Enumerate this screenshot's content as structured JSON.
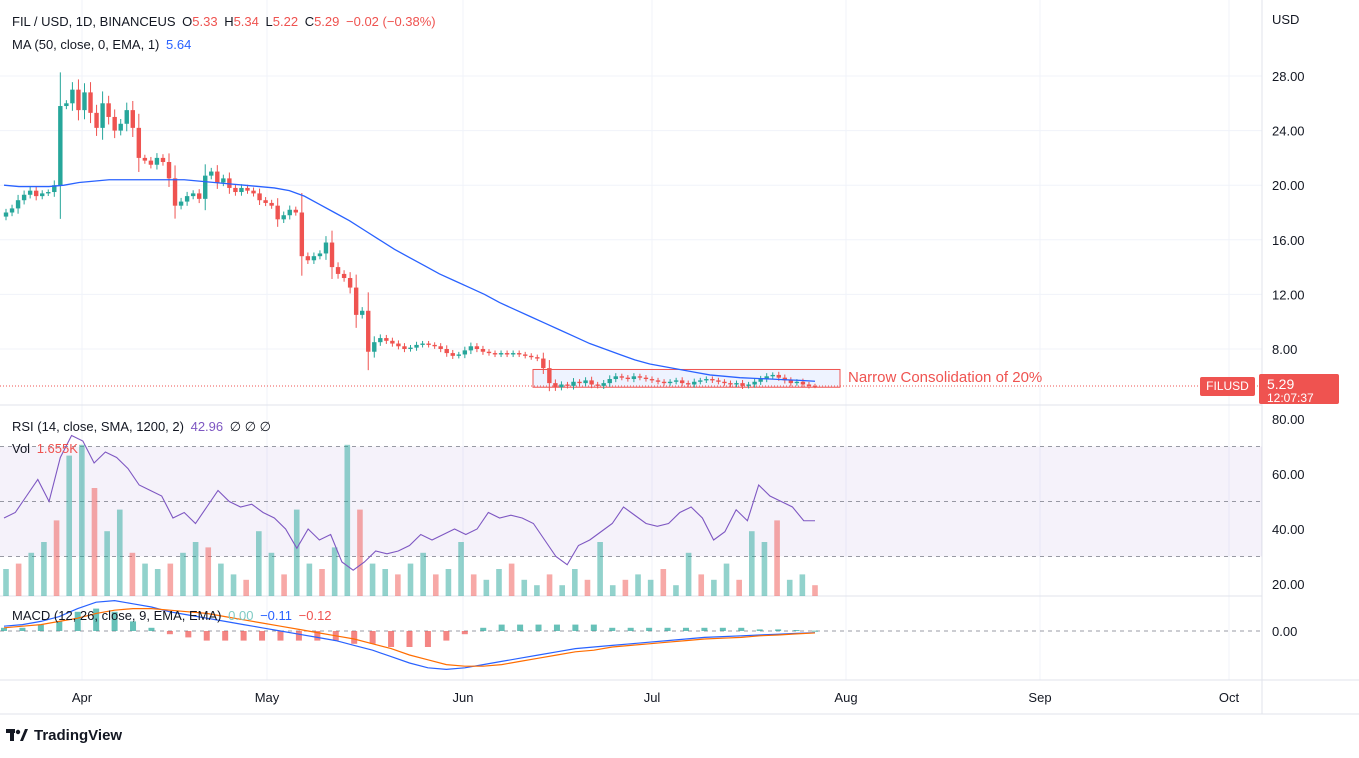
{
  "header": {
    "symbol": "FIL / USD, 1D, BINANCEUS",
    "open_label": "O",
    "open": "5.33",
    "high_label": "H",
    "high": "5.34",
    "low_label": "L",
    "low": "5.22",
    "close_label": "C",
    "close": "5.29",
    "change": "−0.02 (−0.38%)"
  },
  "ma": {
    "label": "MA (50, close, 0, EMA, 1)",
    "value": "5.64"
  },
  "rsi": {
    "label": "RSI (14, close, SMA, 1200, 2)",
    "value": "42.96",
    "extra": "∅ ∅ ∅"
  },
  "vol": {
    "label": "Vol",
    "value": "1.655K"
  },
  "macd": {
    "label": "MACD (12, 26, close, 9, EMA, EMA)",
    "hist": "0.00",
    "macd": "−0.11",
    "signal": "−0.12"
  },
  "price_tag": {
    "symbol": "FILUSD",
    "price": "5.29",
    "countdown": "12:07:37"
  },
  "annotation": "Narrow Consolidation of 20%",
  "brand": "TradingView",
  "currency": "USD",
  "colors": {
    "up": "#26a69a",
    "down": "#ef5350",
    "ma": "#2962ff",
    "rsi": "#7e57c2",
    "signal": "#ff6d00"
  },
  "chart_data": {
    "type": "candlestick",
    "x_ticks": [
      "Apr",
      "May",
      "Jun",
      "Jul",
      "Aug",
      "Sep",
      "Oct"
    ],
    "y_ticks": [
      "28.00",
      "24.00",
      "20.00",
      "16.00",
      "12.00",
      "8.00"
    ],
    "rsi_ticks": [
      "80.00",
      "60.00",
      "40.00",
      "20.00"
    ],
    "macd_ticks": [
      "0.00"
    ],
    "ylim": [
      4,
      31
    ],
    "closes": [
      18.0,
      18.3,
      18.9,
      19.3,
      19.6,
      19.2,
      19.4,
      19.5,
      20.0,
      25.8,
      26.0,
      27.0,
      25.5,
      26.8,
      25.3,
      24.2,
      26.0,
      25.0,
      24.0,
      24.5,
      25.5,
      24.2,
      22.0,
      21.8,
      21.5,
      22.0,
      21.7,
      20.5,
      18.5,
      18.8,
      19.2,
      19.4,
      19.0,
      20.7,
      21.0,
      20.2,
      20.5,
      19.8,
      19.5,
      19.8,
      19.6,
      19.4,
      18.9,
      18.7,
      18.5,
      17.5,
      17.8,
      18.2,
      18.0,
      14.8,
      14.5,
      14.8,
      15.0,
      15.8,
      14.0,
      13.5,
      13.2,
      12.5,
      10.5,
      10.8,
      7.8,
      8.5,
      8.8,
      8.6,
      8.4,
      8.2,
      8.0,
      8.1,
      8.3,
      8.4,
      8.3,
      8.2,
      8.0,
      7.7,
      7.5,
      7.6,
      7.9,
      8.2,
      8.0,
      7.8,
      7.7,
      7.6,
      7.7,
      7.6,
      7.7,
      7.6,
      7.5,
      7.4,
      7.3,
      6.6,
      5.5,
      5.2,
      5.4,
      5.3,
      5.6,
      5.5,
      5.7,
      5.4,
      5.3,
      5.5,
      5.8,
      6.0,
      5.9,
      5.8,
      6.0,
      5.9,
      5.8,
      5.7,
      5.6,
      5.5,
      5.6,
      5.7,
      5.5,
      5.4,
      5.6,
      5.7,
      5.8,
      5.7,
      5.6,
      5.5,
      5.4,
      5.5,
      5.3,
      5.4,
      5.6,
      5.8,
      6.0,
      6.1,
      5.9,
      5.7,
      5.5,
      5.6,
      5.4,
      5.3,
      5.29
    ],
    "ma50": [
      20.0,
      19.9,
      19.9,
      19.9,
      20.0,
      20.2,
      20.3,
      20.4,
      20.4,
      20.4,
      20.4,
      20.4,
      20.4,
      20.3,
      20.2,
      20.1,
      20.0,
      19.9,
      19.8,
      19.6,
      19.2,
      18.6,
      18.0,
      17.4,
      16.7,
      16.0,
      15.3,
      14.7,
      14.1,
      13.5,
      13.0,
      12.5,
      12.0,
      11.4,
      10.9,
      10.4,
      9.9,
      9.4,
      8.9,
      8.4,
      8.0,
      7.6,
      7.2,
      6.9,
      6.7,
      6.5,
      6.3,
      6.1,
      6.0,
      5.9,
      5.85,
      5.8,
      5.75,
      5.7,
      5.64
    ],
    "rsi": [
      44,
      46,
      52,
      58,
      50,
      66,
      74,
      72,
      64,
      68,
      66,
      62,
      56,
      54,
      52,
      44,
      46,
      42,
      48,
      54,
      50,
      48,
      49,
      46,
      44,
      40,
      33,
      40,
      36,
      38,
      28,
      25,
      28,
      32,
      31,
      32,
      34,
      38,
      36,
      38,
      40,
      38,
      40,
      46,
      44,
      45,
      44,
      42,
      36,
      30,
      27,
      34,
      36,
      39,
      42,
      48,
      45,
      42,
      41,
      42,
      46,
      48,
      44,
      36,
      39,
      47,
      43,
      56,
      52,
      50,
      48,
      43,
      43
    ],
    "volume": [
      5,
      6,
      8,
      10,
      14,
      26,
      28,
      20,
      12,
      16,
      8,
      6,
      5,
      6,
      8,
      10,
      9,
      6,
      4,
      3,
      12,
      8,
      4,
      16,
      6,
      5,
      9,
      28,
      16,
      6,
      5,
      4,
      6,
      8,
      4,
      5,
      10,
      4,
      3,
      5,
      6,
      3,
      2,
      4,
      2,
      5,
      3,
      10,
      2,
      3,
      4,
      3,
      5,
      2,
      8,
      4,
      3,
      6,
      3,
      12,
      10,
      14,
      3,
      4,
      2
    ],
    "macd": [
      0.3,
      0.4,
      0.6,
      0.9,
      1.4,
      1.8,
      1.9,
      1.7,
      1.5,
      1.2,
      1.0,
      0.8,
      0.6,
      0.4,
      0.2,
      0.0,
      -0.2,
      -0.4,
      -0.6,
      -0.9,
      -1.2,
      -1.6,
      -2.0,
      -2.3,
      -2.4,
      -2.3,
      -2.1,
      -1.9,
      -1.7,
      -1.5,
      -1.3,
      -1.1,
      -1.0,
      -0.9,
      -0.8,
      -0.7,
      -0.6,
      -0.5,
      -0.4,
      -0.35,
      -0.3,
      -0.25,
      -0.2,
      -0.15,
      -0.11
    ],
    "signal": [
      0.2,
      0.3,
      0.4,
      0.6,
      0.8,
      1.1,
      1.3,
      1.4,
      1.4,
      1.3,
      1.2,
      1.1,
      0.9,
      0.7,
      0.5,
      0.3,
      0.1,
      -0.1,
      -0.3,
      -0.5,
      -0.8,
      -1.1,
      -1.5,
      -1.8,
      -2.1,
      -2.2,
      -2.2,
      -2.1,
      -1.9,
      -1.7,
      -1.5,
      -1.3,
      -1.2,
      -1.0,
      -0.9,
      -0.8,
      -0.7,
      -0.6,
      -0.5,
      -0.45,
      -0.4,
      -0.3,
      -0.25,
      -0.18,
      -0.12
    ],
    "consolidation": {
      "low": 5.2,
      "high": 6.5
    },
    "last_price": 5.29
  }
}
